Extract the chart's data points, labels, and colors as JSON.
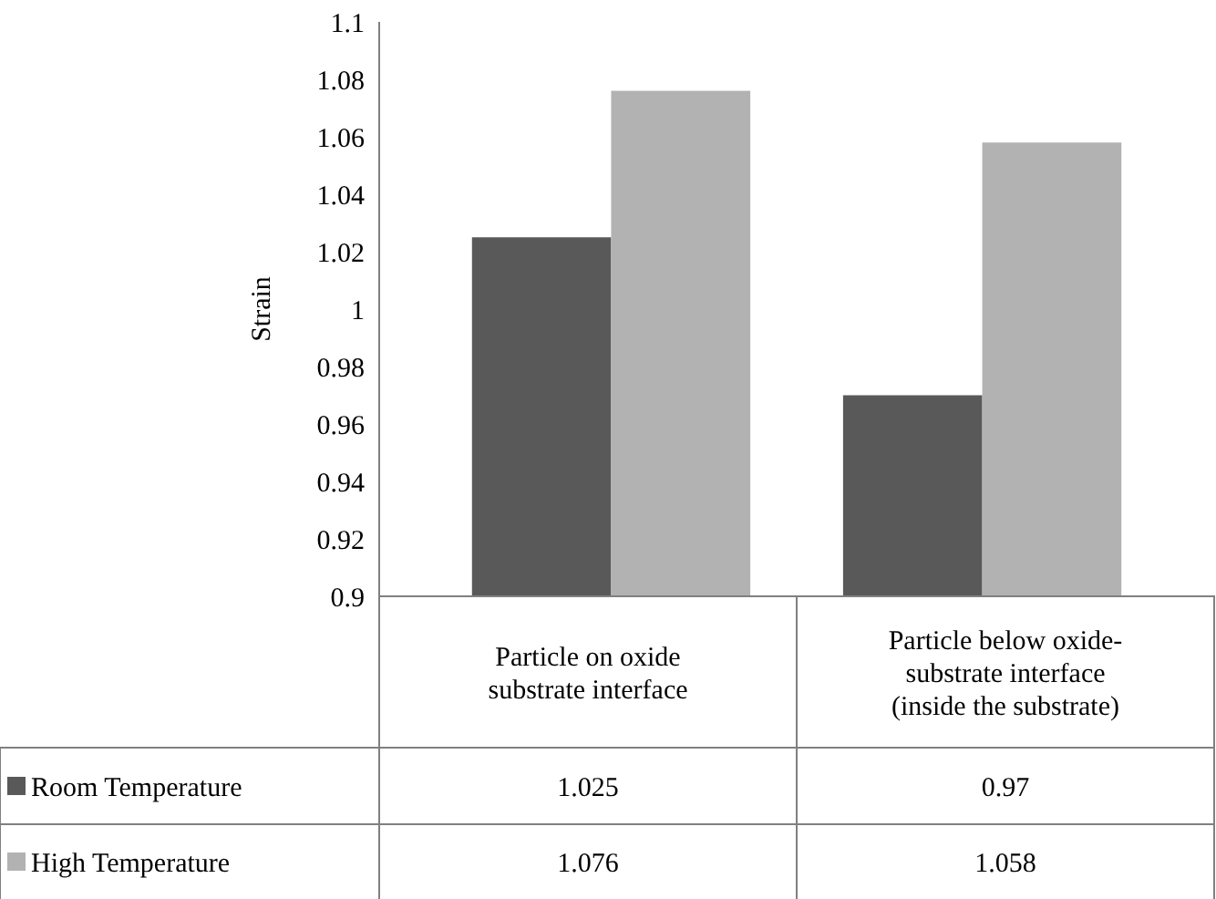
{
  "chart_data": {
    "type": "bar",
    "ylabel": "Strain",
    "categories": [
      "Particle on oxide substrate interface",
      "Particle below oxide-substrate interface (inside the substrate)"
    ],
    "series": [
      {
        "name": "Room Temperature",
        "color": "#595959",
        "values": [
          1.025,
          0.97
        ]
      },
      {
        "name": "High Temperature",
        "color": "#b2b2b2",
        "values": [
          1.076,
          1.058
        ]
      }
    ],
    "ylim": [
      0.9,
      1.1
    ],
    "yticks": [
      0.9,
      0.92,
      0.94,
      0.96,
      0.98,
      1,
      1.02,
      1.04,
      1.06,
      1.08,
      1.1
    ],
    "grid": false,
    "legend": "bottom",
    "data_labels": true
  }
}
